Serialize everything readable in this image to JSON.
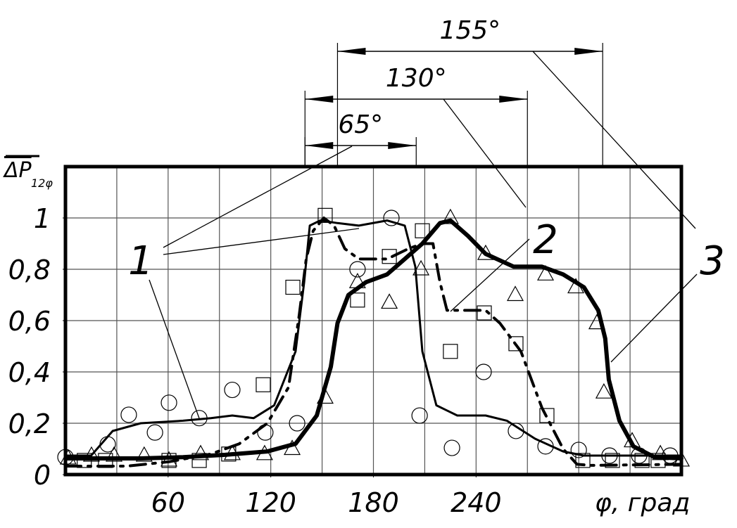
{
  "chart_data": {
    "type": "line",
    "x_label": "φ, град",
    "y_label": "ΔP",
    "y_label_sub": "12φ",
    "xlim": [
      0,
      360
    ],
    "ylim": [
      0,
      1.2
    ],
    "xticks": [
      60,
      120,
      180,
      240
    ],
    "yticks": [
      0,
      {
        "value": 0.2,
        "label": "0,2"
      },
      {
        "value": 0.4,
        "label": "0,4"
      },
      {
        "value": 0.6,
        "label": "0,6"
      },
      {
        "value": 0.8,
        "label": "0,8"
      },
      1
    ],
    "x_gridlines": [
      30,
      60,
      90,
      120,
      150,
      180,
      210,
      240,
      270,
      300,
      330
    ],
    "y_gridlines": [
      0.2,
      0.4,
      0.6,
      0.8,
      1
    ],
    "grid": true,
    "series": [
      {
        "name": "1",
        "color": "#000000",
        "line_width": 3,
        "dashed": false,
        "x": [
          0,
          15,
          27.6,
          44,
          68.7,
          85,
          97.5,
          110,
          122,
          134.5,
          139.5,
          142.8,
          148.9,
          159,
          171.5,
          188,
          198.3,
          204.5,
          208.6,
          216.8,
          229,
          245.6,
          258,
          274.4,
          290.9,
          303,
          360
        ],
        "values": [
          0.074,
          0.074,
          0.17,
          0.2,
          0.21,
          0.22,
          0.23,
          0.22,
          0.27,
          0.48,
          0.75,
          0.97,
          0.99,
          0.98,
          0.97,
          0.99,
          0.97,
          0.81,
          0.48,
          0.27,
          0.23,
          0.23,
          0.21,
          0.14,
          0.09,
          0.074,
          0.074
        ]
      },
      {
        "name": "2",
        "color": "#000000",
        "line_width": 4,
        "dashed": true,
        "x": [
          0,
          35.8,
          60.5,
          85,
          101.6,
          118,
          130.4,
          136.6,
          140.7,
          144.8,
          151,
          157,
          163.3,
          171.5,
          188,
          200.4,
          208.6,
          214.8,
          218.9,
          223,
          233.3,
          245.6,
          253.9,
          266.2,
          278.5,
          290.9,
          299,
          307,
          360
        ],
        "values": [
          0.033,
          0.033,
          0.05,
          0.08,
          0.12,
          0.2,
          0.34,
          0.62,
          0.84,
          0.95,
          1,
          0.97,
          0.88,
          0.84,
          0.84,
          0.88,
          0.9,
          0.9,
          0.75,
          0.64,
          0.64,
          0.64,
          0.59,
          0.48,
          0.26,
          0.1,
          0.04,
          0.036,
          0.04
        ]
      },
      {
        "name": "3",
        "color": "#000000",
        "line_width": 6,
        "dashed": false,
        "x": [
          0,
          44,
          68.7,
          93.4,
          118,
          134.5,
          146.9,
          155.1,
          159,
          165.4,
          175.7,
          188,
          198.3,
          208.6,
          218.9,
          225,
          235.3,
          245.6,
          262,
          278.5,
          290.9,
          303,
          311.4,
          315.5,
          317.6,
          323.8,
          332,
          344.3,
          360
        ],
        "values": [
          0.063,
          0.063,
          0.068,
          0.077,
          0.09,
          0.12,
          0.23,
          0.42,
          0.59,
          0.7,
          0.75,
          0.78,
          0.84,
          0.9,
          0.98,
          0.99,
          0.93,
          0.86,
          0.81,
          0.81,
          0.78,
          0.73,
          0.64,
          0.53,
          0.37,
          0.21,
          0.11,
          0.068,
          0.063
        ]
      }
    ],
    "markers": [
      {
        "shape": "circle",
        "x": [
          0,
          24.7,
          37,
          52.3,
          60.5,
          78.2,
          97.5,
          116.8,
          135.4,
          170.7,
          190.5,
          207,
          225.9,
          244.4,
          263.3,
          280.6,
          300,
          318,
          335.3,
          353.4
        ],
        "values": [
          0.068,
          0.118,
          0.233,
          0.164,
          0.28,
          0.22,
          0.33,
          0.164,
          0.2,
          0.8,
          1,
          0.23,
          0.104,
          0.4,
          0.17,
          0.11,
          0.096,
          0.074,
          0.074,
          0.074
        ]
      },
      {
        "shape": "square",
        "x": [
          11,
          23.4,
          60.5,
          78.2,
          95.4,
          115.6,
          132.9,
          151.8,
          170.7,
          189.3,
          208.6,
          225,
          244.8,
          263.3,
          281.4,
          302.4,
          319.7,
          337,
          346.4
        ],
        "values": [
          0.055,
          0.055,
          0.055,
          0.055,
          0.08,
          0.35,
          0.73,
          1.01,
          0.68,
          0.85,
          0.95,
          0.48,
          0.63,
          0.51,
          0.23,
          0.055,
          0.055,
          0.055,
          0.055
        ]
      },
      {
        "shape": "triangle",
        "x": [
          1.6,
          15.2,
          28.4,
          46,
          60.5,
          79,
          97.5,
          116.4,
          132.5,
          151.8,
          170.7,
          189.3,
          207.8,
          225,
          245.6,
          262.9,
          280.6,
          298.3,
          310.6,
          314.7,
          331.2,
          347.7,
          360
        ],
        "values": [
          0.063,
          0.074,
          0.074,
          0.074,
          0.055,
          0.08,
          0.08,
          0.08,
          0.1,
          0.3,
          0.75,
          0.67,
          0.8,
          1,
          0.86,
          0.7,
          0.78,
          0.73,
          0.59,
          0.32,
          0.13,
          0.08,
          0.055
        ]
      }
    ],
    "dimensions": [
      {
        "label": "155°",
        "from": 159,
        "to": 314
      },
      {
        "label": "130°",
        "from": 140,
        "to": 270
      },
      {
        "label": "65°",
        "from": 140,
        "to": 205
      }
    ]
  }
}
